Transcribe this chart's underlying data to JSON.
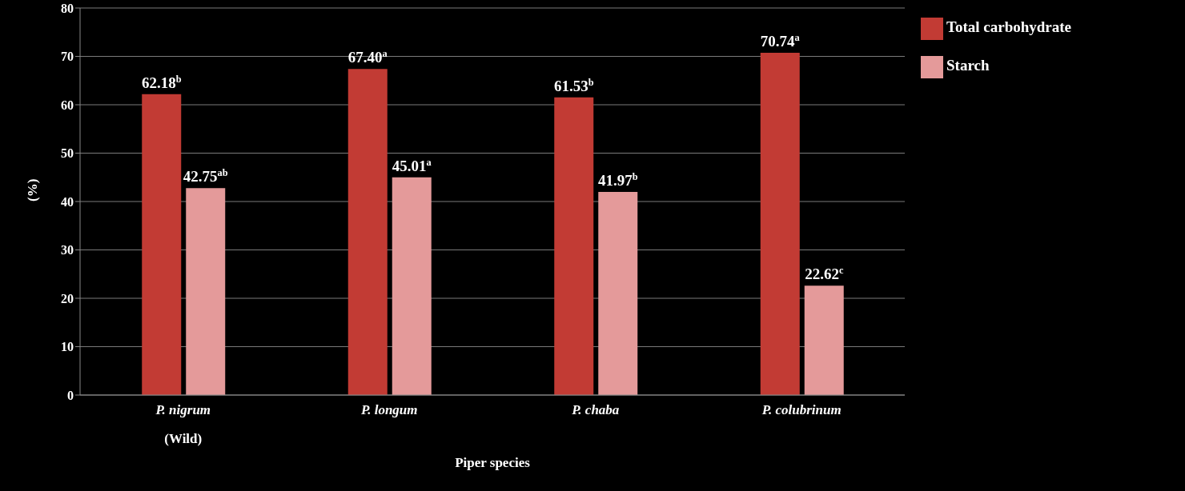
{
  "chart_data": {
    "type": "bar",
    "xlabel": "Piper species",
    "ylabel": "(%)",
    "categories": [
      "P. nigrum\n(Wild)",
      "P. longum",
      "P. chaba",
      "P. colubrinum"
    ],
    "series": [
      {
        "name": "Total carbohydrate",
        "color": "#c23b34",
        "values": [
          62.18,
          67.4,
          61.53,
          70.74
        ],
        "value_labels": [
          "62.18$^{b}$",
          "67.40$^{a}$",
          "61.53$^{b}$",
          "70.74$^{a}$"
        ]
      },
      {
        "name": "Starch",
        "color": "#e49a9a",
        "values": [
          42.75,
          45.01,
          41.97,
          22.62
        ],
        "value_labels": [
          "42.75$^{ab}$",
          "45.01$^{a}$",
          "41.97$^{b}$",
          "22.62$^{c}$"
        ]
      }
    ],
    "ylim": [
      0,
      80
    ],
    "yticks": [
      0,
      10,
      20,
      30,
      40,
      50,
      60,
      70,
      80
    ],
    "grid": "y",
    "legend": "top right"
  }
}
